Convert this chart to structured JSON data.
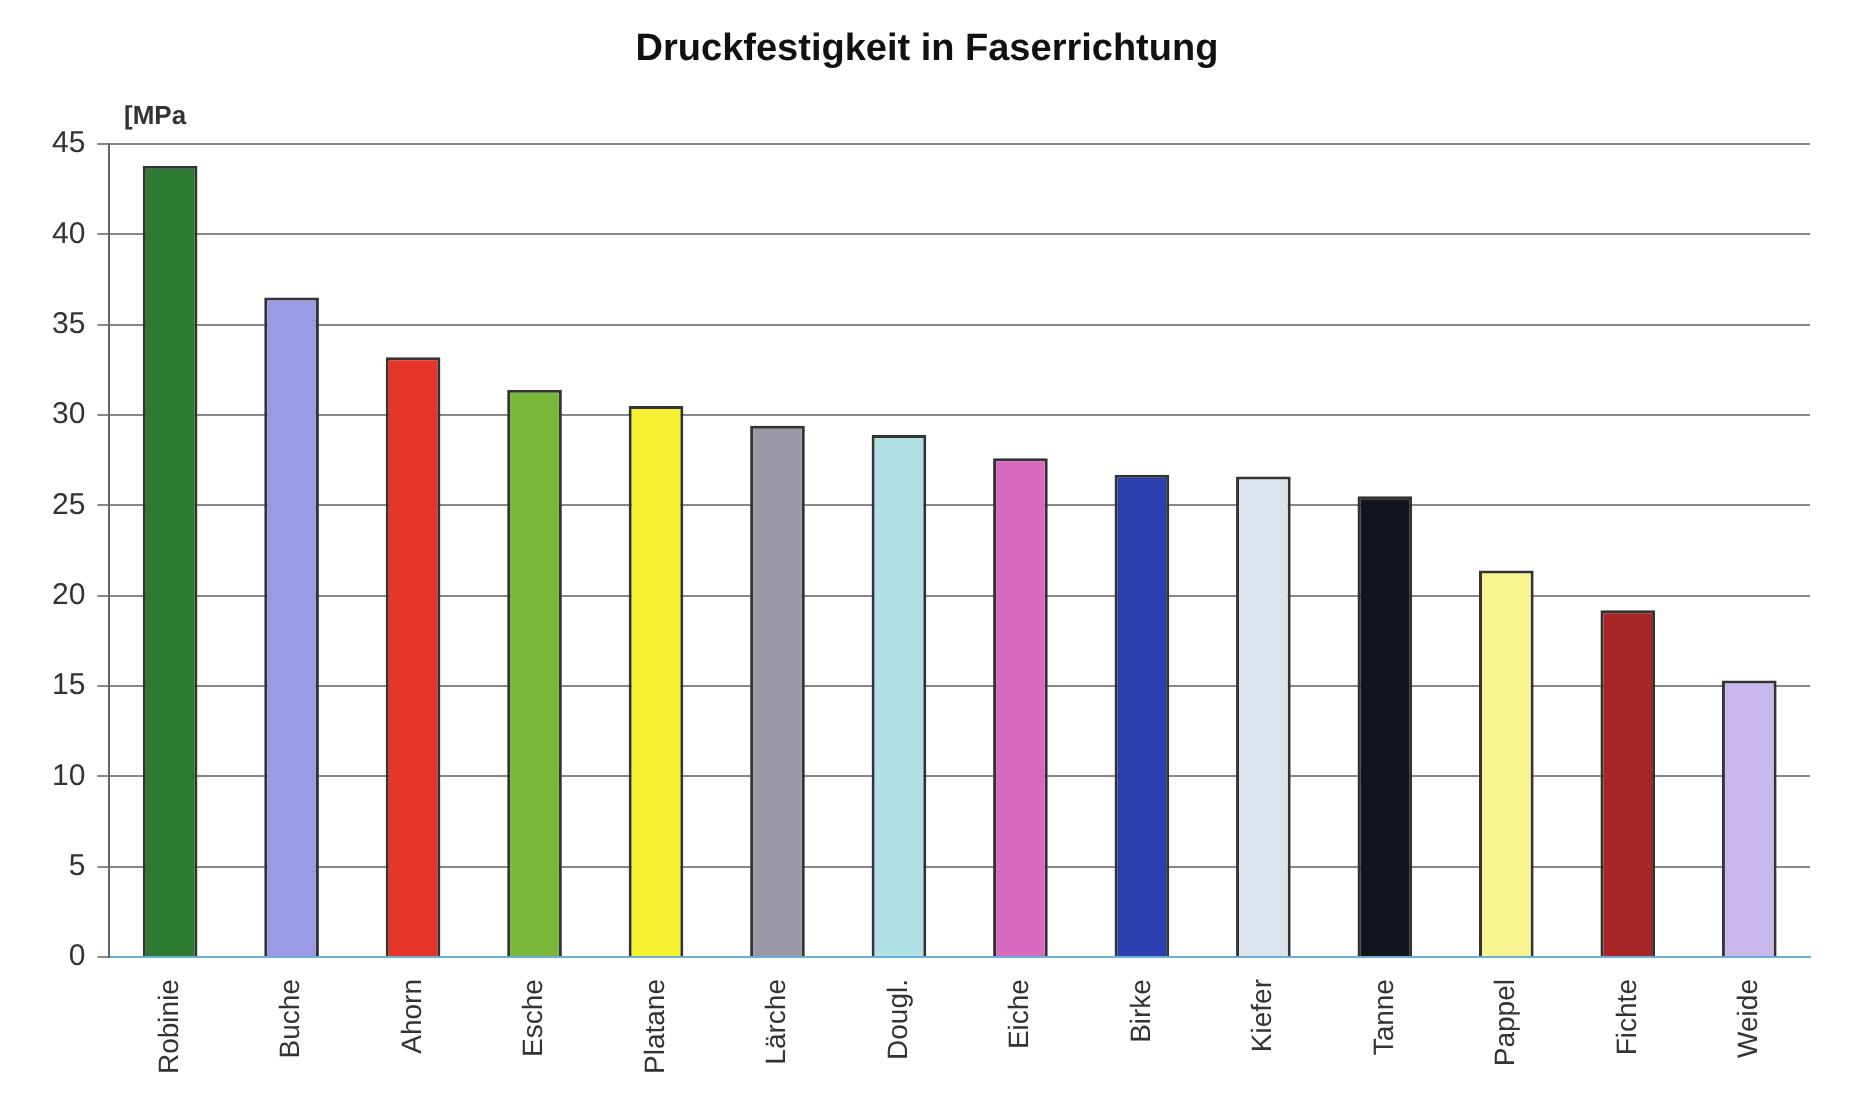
{
  "chart_data": {
    "type": "bar",
    "title": "Druckfestigkeit in Faserrichtung",
    "ylabel": "[MPa",
    "categories": [
      "Robinie",
      "Buche",
      "Ahorn",
      "Esche",
      "Platane",
      "Lärche",
      "Dougl.",
      "Eiche",
      "Birke",
      "Kiefer",
      "Tanne",
      "Pappel",
      "Fichte",
      "Weide"
    ],
    "values": [
      43.8,
      36.5,
      33.2,
      31.4,
      30.5,
      29.4,
      28.9,
      27.6,
      26.7,
      26.6,
      25.5,
      21.4,
      19.2,
      15.3
    ],
    "colors": [
      "#2f7a32",
      "#9a9ae6",
      "#e8352a",
      "#7ab83a",
      "#f5f032",
      "#9a9aa6",
      "#b0e0e6",
      "#d86ac0",
      "#2b3fb0",
      "#dde3ee",
      "#14161e",
      "#f8f490",
      "#a82528",
      "#c8b8ec"
    ],
    "ylim": [
      0,
      45
    ],
    "yticks": [
      0,
      5,
      10,
      15,
      20,
      25,
      30,
      35,
      40,
      45
    ],
    "grid": "y",
    "legend": false
  }
}
